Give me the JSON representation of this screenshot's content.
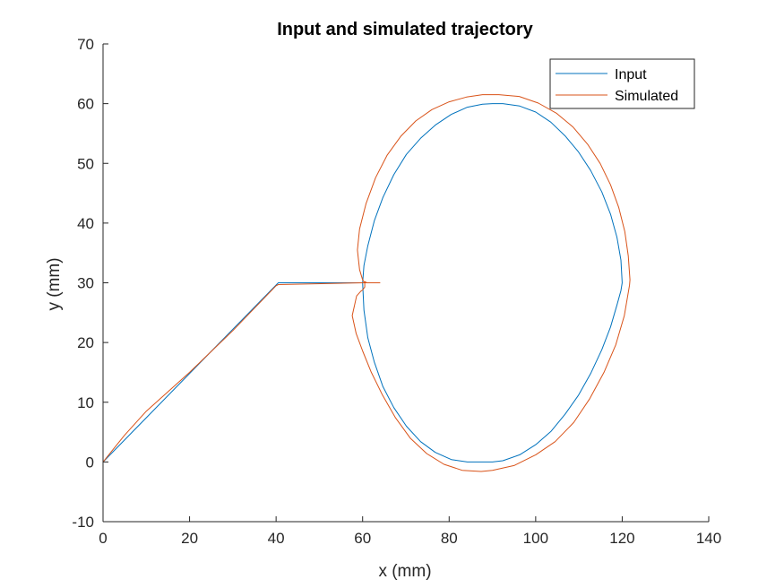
{
  "chart_data": {
    "type": "line",
    "title": "Input and simulated trajectory",
    "xlabel": "x (mm)",
    "ylabel": "y (mm)",
    "xlim": [
      0,
      140
    ],
    "ylim": [
      -10,
      70
    ],
    "xticks": [
      0,
      20,
      40,
      60,
      80,
      100,
      120,
      140
    ],
    "yticks": [
      -10,
      0,
      10,
      20,
      30,
      40,
      50,
      60,
      70
    ],
    "xtick_labels": [
      "0",
      "20",
      "40",
      "60",
      "80",
      "100",
      "120",
      "140"
    ],
    "ytick_labels": [
      "-10",
      "0",
      "10",
      "20",
      "30",
      "40",
      "50",
      "60",
      "70"
    ],
    "grid": false,
    "legend_position": "top-right",
    "series": [
      {
        "name": "Input",
        "color": "#0072BD",
        "x": [
          0,
          40.5,
          60,
          60.3,
          61.2,
          62.7,
          64.7,
          67.2,
          70.1,
          73.4,
          76.8,
          80.5,
          84.2,
          87.7,
          90,
          92.4,
          96.3,
          100,
          103.5,
          106.8,
          109.9,
          112.7,
          115.3,
          117.3,
          118.8,
          119.7,
          120,
          119.7,
          118.8,
          117.3,
          115.3,
          112.7,
          109.9,
          106.8,
          103.5,
          100,
          96.3,
          92.4,
          90,
          87.7,
          84.2,
          80.5,
          76.8,
          73.4,
          70.1,
          67.2,
          64.7,
          62.7,
          61.2,
          60.3,
          60,
          64
        ],
        "y": [
          0,
          30,
          30,
          25.4,
          20.8,
          16.7,
          12.6,
          9.1,
          6,
          3.4,
          1.6,
          0.4,
          0,
          0,
          0,
          0.2,
          1.2,
          2.9,
          5.1,
          8,
          11.2,
          14.8,
          18.8,
          22.6,
          26.3,
          28.7,
          30,
          33.8,
          37.6,
          41.5,
          45.2,
          48.8,
          51.9,
          54.6,
          56.9,
          58.6,
          59.6,
          60,
          60,
          59.9,
          59.4,
          58.2,
          56.4,
          54.2,
          51.5,
          48.1,
          44.3,
          40.4,
          36.2,
          32.9,
          30,
          30
        ]
      },
      {
        "name": "Simulated",
        "color": "#D95319",
        "x": [
          0,
          5,
          10,
          20,
          30,
          40,
          40.5,
          60,
          64,
          61,
          60.5,
          60.5,
          60,
          59.6,
          58.6,
          57.6,
          58.5,
          60,
          62,
          64.6,
          67.6,
          71,
          74.8,
          78.8,
          83,
          87.4,
          90,
          95,
          100,
          104.5,
          108.8,
          112.5,
          115.8,
          118.5,
          120.5,
          121.7,
          121.8,
          121.4,
          120.6,
          119.2,
          117.3,
          114.9,
          112,
          108.6,
          104.8,
          100.6,
          96.2,
          91.5,
          87.7,
          84,
          80,
          76,
          72.3,
          68.9,
          65.7,
          63,
          60.8,
          59.3,
          58.8,
          59.3,
          60,
          60.5
        ],
        "y": [
          0,
          4.5,
          8.5,
          15,
          22,
          29.5,
          29.7,
          30,
          30,
          30,
          30.2,
          29.3,
          28.8,
          28.6,
          27.8,
          24.5,
          21.5,
          18.6,
          15,
          11.2,
          7.4,
          4,
          1.4,
          -0.4,
          -1.4,
          -1.6,
          -1.4,
          -0.6,
          1.2,
          3.4,
          6.6,
          10.6,
          15,
          19.6,
          24.5,
          29.6,
          30.5,
          34.5,
          38.6,
          42.6,
          46.4,
          50,
          53.2,
          56.1,
          58.4,
          60.1,
          61.2,
          61.5,
          61.5,
          61.1,
          60.3,
          59,
          57.1,
          54.6,
          51.4,
          47.6,
          43.3,
          39,
          35.5,
          32.2,
          30.5,
          30
        ]
      }
    ]
  }
}
